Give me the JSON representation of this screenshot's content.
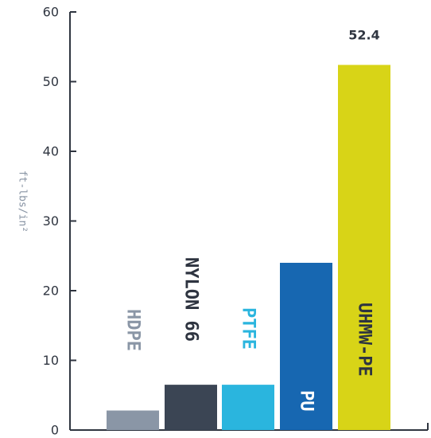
{
  "chart_data": {
    "type": "bar",
    "categories": [
      "HDPE",
      "NYLON 66",
      "PTFE",
      "PU",
      "UHMW-PE"
    ],
    "values": [
      2.8,
      6.5,
      6.5,
      24.0,
      52.4
    ],
    "value_labels": [
      "",
      "",
      "",
      "",
      "52.4"
    ],
    "ylabel": "ft-lbs/in²",
    "ylim": [
      0,
      60
    ],
    "yticks": [
      0,
      10,
      20,
      30,
      40,
      50,
      60
    ],
    "grid": false,
    "legend": "none",
    "bar_colors": [
      "#8a96a6",
      "#3b4554",
      "#2ab5de",
      "#1767b1",
      "#d8d417"
    ],
    "label_colors": [
      "#8a96a6",
      "#2e3440",
      "#2ab5de",
      "#ffffff",
      "#2e3440"
    ],
    "label_inside_bar": [
      false,
      false,
      false,
      true,
      true
    ]
  }
}
